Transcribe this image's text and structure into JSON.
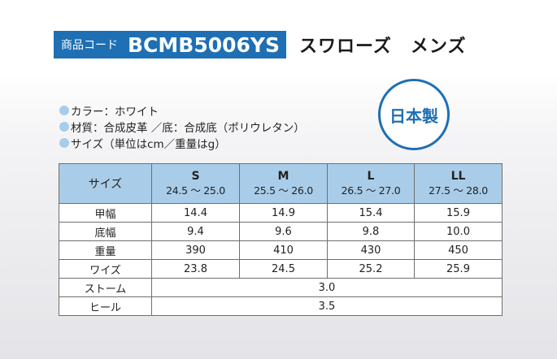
{
  "header": {
    "code_label": "商品コード",
    "code_value": "BCMB5006YS",
    "product_name": "スワローズ　メンズ"
  },
  "specs": [
    "カラー：ホワイト",
    "材質：合成皮革 ／底：合成底（ポリウレタン）",
    "サイズ（単位はcm／重量はg）"
  ],
  "badge": "日本製",
  "colors": {
    "brand_blue": "#1e6fb4",
    "header_fill": "#a9cde9",
    "bullet": "#a9cde9"
  },
  "table": {
    "corner_label": "サイズ",
    "sizes": [
      {
        "label": "S",
        "range": "24.5 ～ 25.0"
      },
      {
        "label": "M",
        "range": "25.5 ～ 26.0"
      },
      {
        "label": "L",
        "range": "26.5 ～ 27.0"
      },
      {
        "label": "LL",
        "range": "27.5 ～ 28.0"
      }
    ],
    "rows": [
      {
        "label": "甲幅",
        "values": [
          "14.4",
          "14.9",
          "15.4",
          "15.9"
        ]
      },
      {
        "label": "底幅",
        "values": [
          "9.4",
          "9.6",
          "9.8",
          "10.0"
        ]
      },
      {
        "label": "重量",
        "values": [
          "390",
          "410",
          "430",
          "450"
        ]
      },
      {
        "label": "ワイズ",
        "values": [
          "23.8",
          "24.5",
          "25.2",
          "25.9"
        ]
      }
    ],
    "merged_rows": [
      {
        "label": "ストーム",
        "value": "3.0"
      },
      {
        "label": "ヒール",
        "value": "3.5"
      }
    ]
  }
}
